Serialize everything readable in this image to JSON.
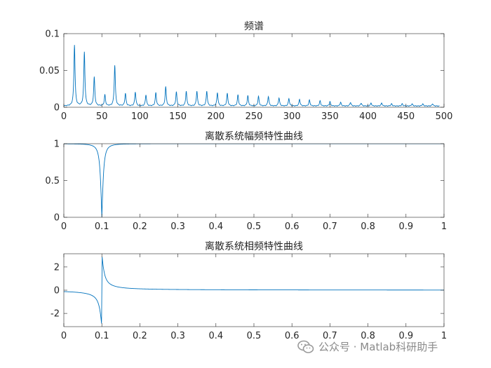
{
  "watermark": {
    "icon": "wechat-icon",
    "text": "公众号 · Matlab科研助手"
  },
  "colors": {
    "line": "#0072BD",
    "axis": "#262626",
    "background": "#ffffff"
  },
  "chart_data": [
    {
      "type": "line",
      "title": "频谱",
      "xlabel": "",
      "ylabel": "",
      "xlim": [
        0,
        500
      ],
      "ylim": [
        0,
        0.1
      ],
      "xticks": [
        0,
        50,
        100,
        150,
        200,
        250,
        300,
        350,
        400,
        450,
        500
      ],
      "yticks": [
        0,
        0.05,
        0.1
      ],
      "xtick_labels": [
        "0",
        "50",
        "100",
        "150",
        "200",
        "250",
        "300",
        "350",
        "400",
        "450",
        "500"
      ],
      "ytick_labels": [
        "0",
        "0.05",
        "0.1"
      ],
      "grid": false,
      "series": [
        {
          "peaks": [
            [
              14,
              0.083
            ],
            [
              27,
              0.073
            ],
            [
              40,
              0.039
            ],
            [
              54,
              0.015
            ],
            [
              67,
              0.055
            ],
            [
              81,
              0.017
            ],
            [
              94,
              0.019
            ],
            [
              108,
              0.015
            ],
            [
              121,
              0.018
            ],
            [
              134,
              0.026
            ],
            [
              148,
              0.019
            ],
            [
              161,
              0.02
            ],
            [
              175,
              0.02
            ],
            [
              188,
              0.02
            ],
            [
              202,
              0.018
            ],
            [
              215,
              0.017
            ],
            [
              229,
              0.015
            ],
            [
              242,
              0.014
            ],
            [
              256,
              0.013
            ],
            [
              269,
              0.013
            ],
            [
              283,
              0.011
            ],
            [
              296,
              0.01
            ],
            [
              310,
              0.009
            ],
            [
              323,
              0.008
            ],
            [
              337,
              0.007
            ],
            [
              350,
              0.006
            ],
            [
              364,
              0.005
            ],
            [
              377,
              0.005
            ],
            [
              391,
              0.004
            ],
            [
              404,
              0.004
            ],
            [
              418,
              0.004
            ],
            [
              431,
              0.003
            ],
            [
              445,
              0.003
            ],
            [
              458,
              0.003
            ],
            [
              472,
              0.003
            ],
            [
              485,
              0.003
            ]
          ],
          "floor": 0.002,
          "end_x": 494
        }
      ]
    },
    {
      "type": "line",
      "title": "离散系统幅频特性曲线",
      "xlabel": "",
      "ylabel": "",
      "xlim": [
        0,
        1
      ],
      "ylim": [
        0,
        1
      ],
      "xticks": [
        0,
        0.1,
        0.2,
        0.3,
        0.4,
        0.5,
        0.6,
        0.7,
        0.8,
        0.9,
        1
      ],
      "yticks": [
        0,
        0.5,
        1
      ],
      "xtick_labels": [
        "0",
        "0.1",
        "0.2",
        "0.3",
        "0.4",
        "0.5",
        "0.6",
        "0.7",
        "0.8",
        "0.9",
        "1"
      ],
      "ytick_labels": [
        "0",
        "0.5",
        "1"
      ],
      "grid": false,
      "series": [
        {
          "kind": "notch",
          "notch_x": 0.1,
          "min_y": 0,
          "max_y": 1
        }
      ]
    },
    {
      "type": "line",
      "title": "离散系统相频特性曲线",
      "xlabel": "",
      "ylabel": "",
      "xlim": [
        0,
        1
      ],
      "ylim": [
        -3.14,
        3.14
      ],
      "xticks": [
        0,
        0.1,
        0.2,
        0.3,
        0.4,
        0.5,
        0.6,
        0.7,
        0.8,
        0.9,
        1
      ],
      "yticks": [
        -2,
        0,
        2
      ],
      "xtick_labels": [
        "0",
        "0.1",
        "0.2",
        "0.3",
        "0.4",
        "0.5",
        "0.6",
        "0.7",
        "0.8",
        "0.9",
        "1"
      ],
      "ytick_labels": [
        "-2",
        "0",
        "2"
      ],
      "grid": false,
      "series": [
        {
          "kind": "phase-jump",
          "jump_x": 0.1,
          "min_y": -3.14,
          "max_y": 3.14
        }
      ]
    }
  ]
}
